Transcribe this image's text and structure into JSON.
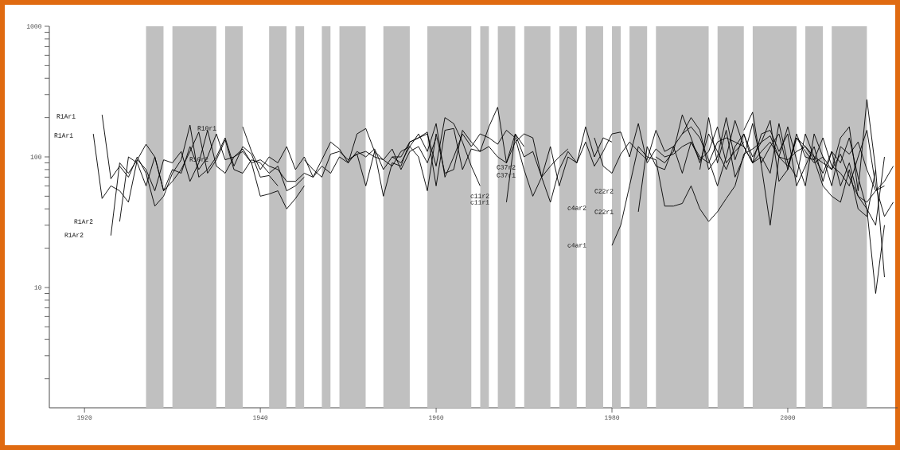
{
  "chart_data": {
    "type": "line",
    "log": "y",
    "xlim": [
      1916,
      2012.5
    ],
    "xticks": [
      1920,
      1940,
      1960,
      1980,
      2000
    ],
    "ylim": [
      1.2,
      1000
    ],
    "yticks": [
      {
        "value": 2,
        "label": null
      },
      {
        "value": 3,
        "label": null
      },
      {
        "value": 4,
        "label": null
      },
      {
        "value": 5,
        "label": null
      },
      {
        "value": 6,
        "label": null
      },
      {
        "value": 7,
        "label": null
      },
      {
        "value": 8,
        "label": null
      },
      {
        "value": 9,
        "label": null
      },
      10,
      {
        "value": 20,
        "label": null
      },
      {
        "value": 30,
        "label": null
      },
      {
        "value": 40,
        "label": null
      },
      {
        "value": 50,
        "label": null
      },
      {
        "value": 60,
        "label": null
      },
      {
        "value": 70,
        "label": null
      },
      {
        "value": 80,
        "label": null
      },
      {
        "value": 90,
        "label": null
      },
      100,
      {
        "value": 200,
        "label": null
      },
      {
        "value": 300,
        "label": null
      },
      {
        "value": 400,
        "label": null
      },
      {
        "value": 500,
        "label": null
      },
      {
        "value": 600,
        "label": null
      },
      {
        "value": 700,
        "label": null
      },
      {
        "value": 800,
        "label": null
      },
      {
        "value": 900,
        "label": null
      },
      1000
    ],
    "bands": [
      {
        "axis": "x",
        "from": 1927,
        "to": 1929,
        "color": "#c0c0c0"
      },
      {
        "axis": "x",
        "from": 1930,
        "to": 1935,
        "color": "#c0c0c0"
      },
      {
        "axis": "x",
        "from": 1936,
        "to": 1938,
        "color": "#c0c0c0"
      },
      {
        "axis": "x",
        "from": 1941,
        "to": 1943,
        "color": "#c0c0c0"
      },
      {
        "axis": "x",
        "from": 1944,
        "to": 1945,
        "color": "#c0c0c0"
      },
      {
        "axis": "x",
        "from": 1947,
        "to": 1948,
        "color": "#c0c0c0"
      },
      {
        "axis": "x",
        "from": 1949,
        "to": 1952,
        "color": "#c0c0c0"
      },
      {
        "axis": "x",
        "from": 1954,
        "to": 1957,
        "color": "#c0c0c0"
      },
      {
        "axis": "x",
        "from": 1959,
        "to": 1964,
        "color": "#c0c0c0"
      },
      {
        "axis": "x",
        "from": 1965,
        "to": 1966,
        "color": "#c0c0c0"
      },
      {
        "axis": "x",
        "from": 1967,
        "to": 1969,
        "color": "#c0c0c0"
      },
      {
        "axis": "x",
        "from": 1970,
        "to": 1973,
        "color": "#c0c0c0"
      },
      {
        "axis": "x",
        "from": 1974,
        "to": 1976,
        "color": "#c0c0c0"
      },
      {
        "axis": "x",
        "from": 1977,
        "to": 1979,
        "color": "#c0c0c0"
      },
      {
        "axis": "x",
        "from": 1980,
        "to": 1981,
        "color": "#c0c0c0"
      },
      {
        "axis": "x",
        "from": 1982,
        "to": 1984,
        "color": "#c0c0c0"
      },
      {
        "axis": "x",
        "from": 1985,
        "to": 1991,
        "color": "#c0c0c0"
      },
      {
        "axis": "x",
        "from": 1992,
        "to": 1995,
        "color": "#c0c0c0"
      },
      {
        "axis": "x",
        "from": 1996,
        "to": 2001,
        "color": "#c0c0c0"
      },
      {
        "axis": "x",
        "from": 2002,
        "to": 2004,
        "color": "#c0c0c0"
      },
      {
        "axis": "x",
        "from": 2005,
        "to": 2009,
        "color": "#c0c0c0"
      }
    ],
    "annotations": [
      "R1Ar1",
      "R1Ar1",
      "R1Ar2",
      "R1Ar2",
      "R10r1",
      "R10r2",
      "C37r2",
      "C37r1",
      "c11r2",
      "c11r1",
      "c4ar2",
      "c4ar1",
      "C22r2",
      "C22r1"
    ],
    "series": [
      {
        "color": "#000000",
        "x": [
          1921,
          1922,
          1923,
          1924,
          1925,
          1926,
          1927,
          1928,
          1929,
          1930,
          1931,
          1932,
          1933,
          1934,
          1935,
          1936,
          1937,
          1938,
          1939,
          1940
        ],
        "values": [
          150,
          48,
          60,
          55,
          45,
          95,
          80,
          55,
          95,
          90,
          110,
          65,
          90,
          160,
          85,
          75,
          100,
          110,
          90,
          95
        ]
      },
      {
        "color": "#000000",
        "x": [
          1922,
          1923,
          1924,
          1925,
          1926,
          1927,
          1928,
          1929,
          1930,
          1931,
          1932,
          1933,
          1934,
          1935,
          1936,
          1937,
          1938,
          1939,
          1940,
          1941,
          1942
        ],
        "values": [
          210,
          68,
          85,
          70,
          100,
          75,
          42,
          50,
          75,
          95,
          175,
          70,
          80,
          100,
          140,
          85,
          120,
          105,
          70,
          72,
          60
        ]
      },
      {
        "color": "#000000",
        "x": [
          1923,
          1924,
          1925,
          1926,
          1927,
          1928,
          1929,
          1930,
          1931,
          1932,
          1933,
          1934,
          1935,
          1936,
          1937,
          1938,
          1939,
          1940,
          1941,
          1942,
          1943,
          1944,
          1945
        ],
        "values": [
          25,
          90,
          75,
          95,
          125,
          100,
          55,
          65,
          80,
          110,
          155,
          75,
          95,
          135,
          80,
          75,
          95,
          90,
          75,
          85,
          55,
          60,
          70
        ]
      },
      {
        "color": "#000000",
        "x": [
          1924,
          1925,
          1926,
          1927,
          1928,
          1929,
          1930,
          1931,
          1932,
          1933,
          1934,
          1935,
          1936,
          1937,
          1938,
          1939,
          1940,
          1941,
          1942,
          1943,
          1944,
          1945
        ],
        "values": [
          32,
          100,
          90,
          60,
          100,
          55,
          80,
          75,
          120,
          80,
          100,
          150,
          95,
          100,
          115,
          90,
          50,
          52,
          55,
          40,
          48,
          60
        ]
      },
      {
        "color": "#000000",
        "x": [
          1938,
          1939,
          1940,
          1941,
          1942,
          1943,
          1944,
          1945,
          1946,
          1947,
          1948,
          1949,
          1950,
          1951,
          1952,
          1953,
          1954,
          1955,
          1956,
          1957,
          1958,
          1959,
          1960
        ],
        "values": [
          170,
          110,
          80,
          100,
          90,
          120,
          80,
          100,
          70,
          95,
          130,
          115,
          90,
          150,
          165,
          110,
          95,
          115,
          80,
          110,
          120,
          90,
          140
        ]
      },
      {
        "color": "#000000",
        "x": [
          1940,
          1941,
          1942,
          1943,
          1944,
          1945,
          1946,
          1947,
          1948,
          1949,
          1950,
          1951,
          1952,
          1953,
          1954,
          1955,
          1956,
          1957,
          1958,
          1959,
          1960,
          1961,
          1962,
          1963,
          1964,
          1965
        ],
        "values": [
          95,
          85,
          80,
          65,
          65,
          75,
          70,
          85,
          75,
          100,
          90,
          110,
          100,
          115,
          80,
          100,
          100,
          130,
          140,
          150,
          85,
          200,
          180,
          130,
          85,
          60
        ]
      },
      {
        "color": "#000000",
        "x": [
          1945,
          1946,
          1947,
          1948,
          1949,
          1950,
          1951,
          1952,
          1953,
          1954,
          1955,
          1956,
          1957,
          1958,
          1959,
          1960,
          1961,
          1962,
          1963,
          1964,
          1965,
          1966,
          1967,
          1968,
          1969,
          1970
        ],
        "values": [
          95,
          80,
          70,
          105,
          110,
          95,
          105,
          110,
          100,
          95,
          85,
          110,
          120,
          100,
          55,
          150,
          75,
          80,
          160,
          130,
          110,
          120,
          100,
          90,
          150,
          120
        ]
      },
      {
        "color": "#000000",
        "x": [
          1950,
          1951,
          1952,
          1953,
          1954,
          1955,
          1956,
          1957,
          1958,
          1959,
          1960,
          1961,
          1962,
          1963,
          1964,
          1965,
          1966,
          1967,
          1968,
          1969,
          1970,
          1971,
          1972,
          1973,
          1974,
          1975
        ],
        "values": [
          95,
          105,
          60,
          110,
          50,
          90,
          85,
          130,
          140,
          155,
          60,
          160,
          165,
          80,
          115,
          110,
          170,
          240,
          90,
          130,
          150,
          140,
          70,
          85,
          100,
          115
        ]
      },
      {
        "color": "#000000",
        "x": [
          1955,
          1956,
          1957,
          1958,
          1959,
          1960,
          1961,
          1962,
          1963,
          1964,
          1965,
          1966,
          1967,
          1968,
          1969,
          1970,
          1971,
          1972,
          1973,
          1974,
          1975,
          1976,
          1977,
          1978,
          1979,
          1980
        ],
        "values": [
          100,
          90,
          120,
          150,
          110,
          180,
          70,
          100,
          150,
          120,
          150,
          140,
          125,
          160,
          140,
          80,
          50,
          70,
          120,
          60,
          100,
          90,
          170,
          100,
          140,
          130
        ]
      },
      {
        "color": "#000000",
        "x": [
          1968,
          1969,
          1970,
          1971,
          1972,
          1973,
          1974,
          1975,
          1976,
          1977,
          1978,
          1979,
          1980,
          1981,
          1982,
          1983,
          1984,
          1985,
          1986,
          1987,
          1988,
          1989,
          1990,
          1991,
          1992,
          1993,
          1994,
          1995
        ],
        "values": [
          45,
          150,
          100,
          110,
          70,
          45,
          80,
          110,
          90,
          130,
          85,
          110,
          150,
          155,
          100,
          180,
          90,
          115,
          100,
          105,
          120,
          130,
          95,
          110,
          170,
          90,
          110,
          130
        ]
      },
      {
        "color": "#000000",
        "x": [
          1980,
          1981,
          1982,
          1983,
          1984,
          1985,
          1986,
          1987,
          1988,
          1989,
          1990,
          1991,
          1992,
          1993,
          1994,
          1995,
          1996,
          1997,
          1998,
          1999,
          2000,
          2001,
          2002,
          2003,
          2004,
          2005,
          2006,
          2007,
          2008,
          2009,
          2010,
          2011
        ],
        "values": [
          21,
          30,
          60,
          120,
          100,
          95,
          42,
          42,
          44,
          60,
          40,
          32,
          38,
          48,
          60,
          105,
          115,
          130,
          145,
          100,
          95,
          110,
          120,
          100,
          90,
          80,
          105,
          70,
          50,
          45,
          55,
          60
        ]
      },
      {
        "color": "#000000",
        "x": [
          1983,
          1984,
          1985,
          1986,
          1987,
          1988,
          1989,
          1990,
          1991,
          1992,
          1993,
          1994,
          1995,
          1996,
          1997,
          1998,
          1999,
          2000,
          2001,
          2002,
          2003,
          2004,
          2005,
          2006,
          2007,
          2008,
          2009,
          2010,
          2011
        ],
        "values": [
          38,
          120,
          85,
          80,
          120,
          150,
          200,
          160,
          80,
          100,
          200,
          95,
          150,
          90,
          100,
          75,
          180,
          90,
          70,
          150,
          100,
          75,
          110,
          60,
          90,
          50,
          40,
          9,
          30
        ]
      },
      {
        "color": "#000000",
        "x": [
          1985,
          1986,
          1987,
          1988,
          1989,
          1990,
          1991,
          1992,
          1993,
          1994,
          1995,
          1996,
          1997,
          1998,
          1999,
          2000,
          2001,
          2002,
          2003,
          2004,
          2005,
          2006,
          2007,
          2008,
          2009,
          2010,
          2011,
          2012
        ],
        "values": [
          100,
          90,
          110,
          210,
          140,
          90,
          150,
          110,
          80,
          120,
          150,
          100,
          130,
          190,
          65,
          80,
          150,
          100,
          95,
          140,
          85,
          75,
          60,
          100,
          160,
          60,
          35,
          45
        ]
      },
      {
        "color": "#000000",
        "x": [
          1978,
          1979,
          1980,
          1981,
          1982,
          1983,
          1984,
          1985,
          1986,
          1987,
          1988,
          1989,
          1990,
          1991,
          1992,
          1993,
          1994,
          1995,
          1996,
          1997,
          1998,
          1999,
          2000,
          2001,
          2002,
          2003,
          2004,
          2005,
          2006,
          2007,
          2008,
          2009,
          2010,
          2011
        ],
        "values": [
          140,
          85,
          75,
          105,
          130,
          110,
          95,
          160,
          110,
          120,
          75,
          130,
          100,
          90,
          130,
          140,
          130,
          120,
          90,
          150,
          160,
          110,
          150,
          60,
          85,
          120,
          65,
          110,
          90,
          140,
          70,
          40,
          30,
          100
        ]
      },
      {
        "color": "#000000",
        "x": [
          1990,
          1991,
          1992,
          1993,
          1994,
          1995,
          1996,
          1997,
          1998,
          1999,
          2000,
          2001,
          2002,
          2003,
          2004,
          2005,
          2006,
          2007,
          2008,
          2009,
          2010,
          2011,
          2012
        ],
        "values": [
          80,
          200,
          90,
          160,
          70,
          100,
          180,
          90,
          120,
          150,
          80,
          140,
          110,
          90,
          100,
          60,
          120,
          105,
          130,
          80,
          55,
          65,
          85
        ]
      },
      {
        "color": "#000000",
        "x": [
          1995,
          1996,
          1997,
          1998,
          1999,
          2000,
          2001,
          2002,
          2003,
          2004,
          2005,
          2006,
          2007,
          2008,
          2009,
          2010,
          2011
        ],
        "values": [
          160,
          220,
          85,
          30,
          100,
          170,
          95,
          60,
          150,
          100,
          80,
          140,
          170,
          55,
          275,
          80,
          12
        ]
      },
      {
        "color": "#000000",
        "x": [
          1988,
          1989,
          1990,
          1991,
          1992,
          1993,
          1994,
          1995,
          1996,
          1997,
          1998,
          1999,
          2000,
          2001,
          2002,
          2003,
          2004,
          2005,
          2006,
          2007,
          2008,
          2009,
          2010
        ],
        "values": [
          150,
          170,
          140,
          95,
          60,
          100,
          190,
          120,
          90,
          110,
          130,
          100,
          85,
          140,
          120,
          95,
          60,
          50,
          45,
          80,
          40,
          35,
          80
        ]
      }
    ]
  }
}
